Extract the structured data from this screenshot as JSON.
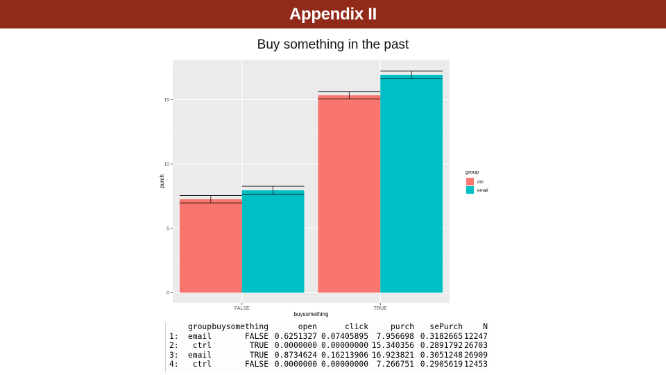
{
  "header": {
    "title": "Appendix II"
  },
  "chart_data": {
    "type": "bar",
    "title": "Buy something in the past",
    "xlabel": "buysomething",
    "ylabel": "purch",
    "categories": [
      "FALSE",
      "TRUE"
    ],
    "ylim": [
      0,
      17.7
    ],
    "yticks": [
      0,
      5,
      10,
      15
    ],
    "grid": true,
    "legend_title": "group",
    "legend_position": "right",
    "series": [
      {
        "name": "ctrl",
        "color": "#F8766D",
        "values": [
          7.266751,
          15.340356
        ],
        "se": [
          0.2905619,
          0.2891792
        ]
      },
      {
        "name": "email",
        "color": "#00BFC4",
        "values": [
          7.956698,
          16.923821
        ],
        "se": [
          0.3182665,
          0.3051248
        ]
      }
    ]
  },
  "table": {
    "headers": [
      "",
      "group",
      "buysomething",
      "open",
      "click",
      "purch",
      "sePurch",
      "N"
    ],
    "rows": [
      [
        "1:",
        "email",
        "FALSE",
        "0.6251327",
        "0.07405895",
        "7.956698",
        "0.3182665",
        "12247"
      ],
      [
        "2:",
        "ctrl",
        "TRUE",
        "0.0000000",
        "0.00000000",
        "15.340356",
        "0.2891792",
        "26703"
      ],
      [
        "3:",
        "email",
        "TRUE",
        "0.8734624",
        "0.16213906",
        "16.923821",
        "0.3051248",
        "26909"
      ],
      [
        "4:",
        "ctrl",
        "FALSE",
        "0.0000000",
        "0.00000000",
        "7.266751",
        "0.2905619",
        "12453"
      ]
    ]
  }
}
